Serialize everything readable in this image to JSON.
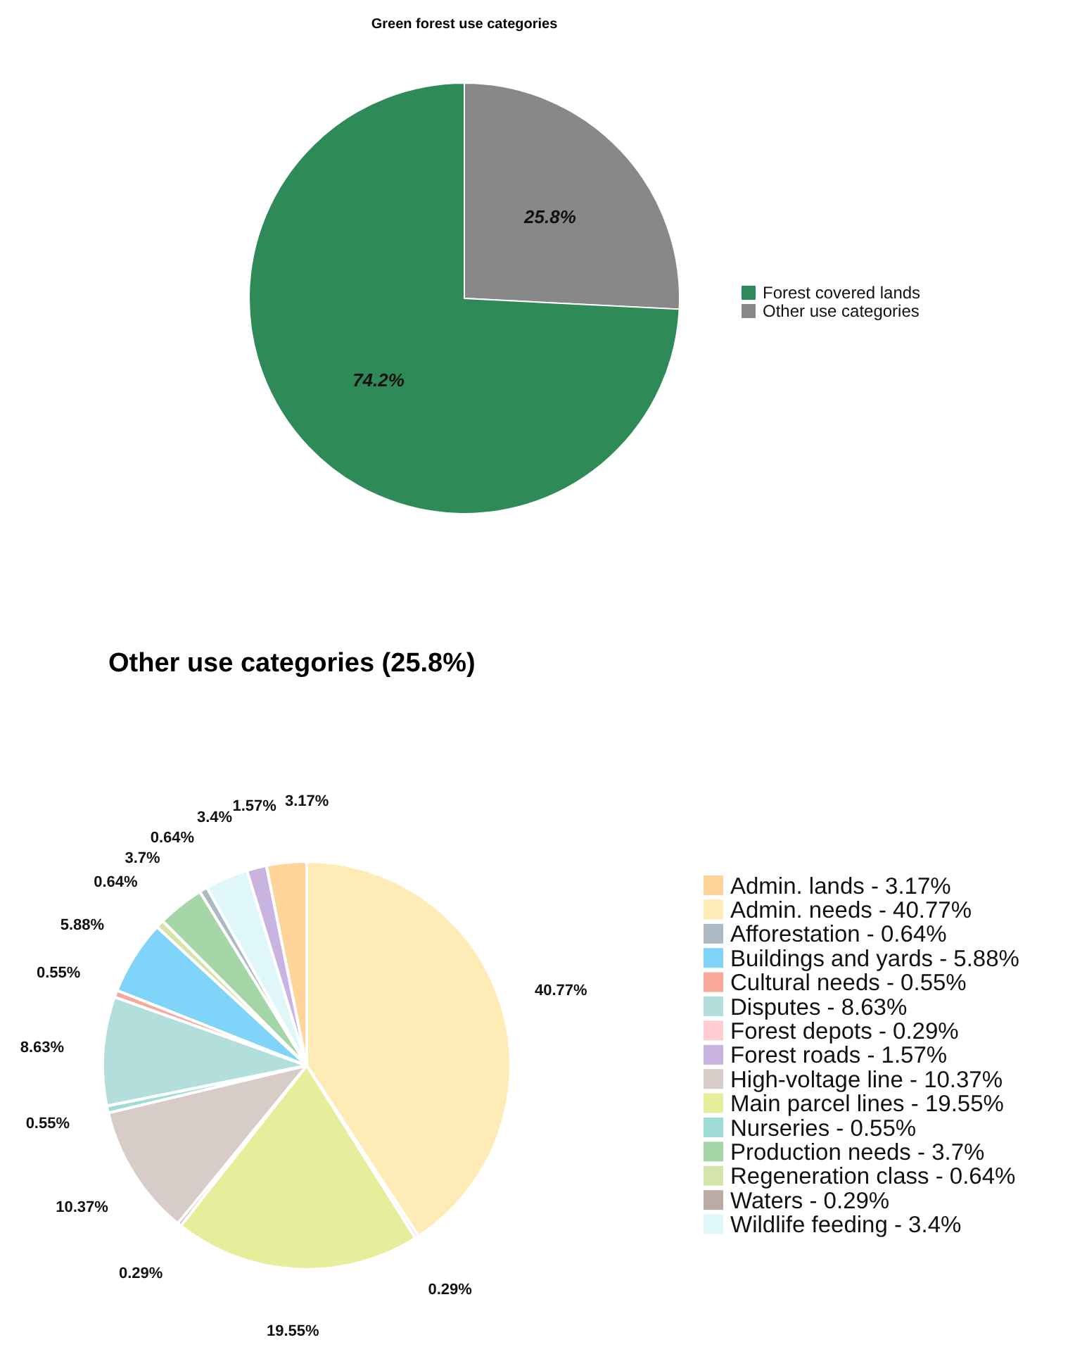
{
  "chart_data": [
    {
      "type": "pie",
      "title": "Green forest use categories",
      "categories": [
        "Other use categories",
        "Forest covered lands"
      ],
      "values": [
        25.8,
        74.2
      ],
      "colors": [
        "#888888",
        "#2e8b57"
      ],
      "value_labels": [
        "25.8%",
        "74.2%"
      ],
      "legend": "right"
    },
    {
      "type": "pie",
      "title": "Other use categories (25.8%)",
      "categories": [
        "Admin. needs - 40.77%",
        "Forest depots - 0.29%",
        "Main parcel lines - 19.55%",
        "Waters - 0.29%",
        "High-voltage line - 10.37%",
        "Nurseries - 0.55%",
        "Disputes - 8.63%",
        "Cultural needs - 0.55%",
        "Buildings and yards - 5.88%",
        "Regeneration class - 0.64%",
        "Production needs - 3.7%",
        "Afforestation - 0.64%",
        "Wildlife feeding - 3.4%",
        "Forest roads - 1.57%",
        "Admin. lands - 3.17%"
      ],
      "values": [
        40.77,
        0.29,
        19.55,
        0.29,
        10.37,
        0.55,
        8.63,
        0.55,
        5.88,
        0.64,
        3.7,
        0.64,
        3.4,
        1.57,
        3.17
      ],
      "colors": [
        "#ffebb5",
        "#ffcdd2",
        "#e6ee9c",
        "#bcaaa4",
        "#d7ccc8",
        "#a0dcd6",
        "#b2dfdb",
        "#f7a899",
        "#80d4fa",
        "#d4e4aa",
        "#a5d6a7",
        "#adb9c3",
        "#e0f7fa",
        "#c9b3e0",
        "#fed49a"
      ],
      "value_labels": [
        "40.77%",
        "0.29%",
        "19.55%",
        "0.29%",
        "10.37%",
        "0.55%",
        "8.63%",
        "0.55%",
        "5.88%",
        "0.64%",
        "3.7%",
        "0.64%",
        "3.4%",
        "1.57%",
        "3.17%"
      ],
      "legend": "right"
    }
  ]
}
